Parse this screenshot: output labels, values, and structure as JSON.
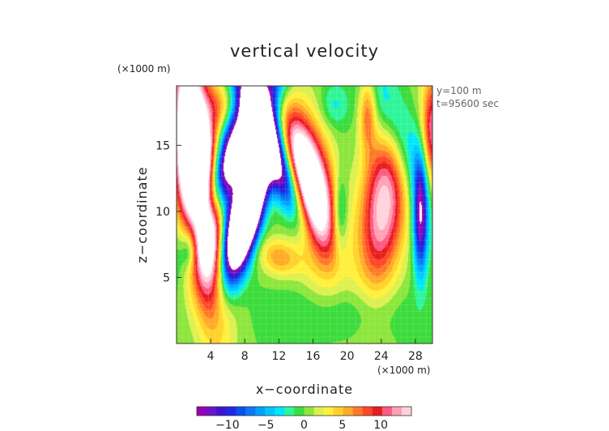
{
  "chart_data": {
    "type": "heatmap",
    "title": "vertical velocity",
    "xlabel": "x−coordinate",
    "ylabel": "z−coordinate",
    "x_unit": "(×1000 m)",
    "y_unit": "(×1000 m)",
    "info_lines": [
      "y=100 m",
      "t=95600 sec"
    ],
    "xlim": [
      0,
      30
    ],
    "ylim": [
      0,
      19.5
    ],
    "x_ticks": [
      4,
      8,
      12,
      16,
      20,
      24,
      28
    ],
    "y_ticks": [
      5,
      10,
      15
    ],
    "colorbar": {
      "ticks": [
        -10,
        -5,
        0,
        5,
        10
      ],
      "tick_labels": [
        "−10",
        "−5",
        "0",
        "5",
        "10"
      ],
      "range": [
        -14,
        14
      ],
      "colors": [
        "#9a00b4",
        "#6a14c8",
        "#3b14d2",
        "#1e28e6",
        "#0a50f0",
        "#0a78f5",
        "#00a0ff",
        "#00c8ff",
        "#00e6ff",
        "#2ef59a",
        "#3cdc3c",
        "#8ce63c",
        "#dcf050",
        "#fff03c",
        "#ffd22a",
        "#ffaa28",
        "#ff7828",
        "#ff4628",
        "#e61e1e",
        "#ff5a82",
        "#ffa0b4",
        "#ffd2dc"
      ]
    },
    "features": [
      {
        "x": 2.8,
        "z": 12.2,
        "w": 30,
        "sx": 1.6,
        "sz": 6.2,
        "tilt": -0.15
      },
      {
        "x": 1.0,
        "z": 15.0,
        "w": 6,
        "sx": 1.0,
        "sz": 4.0,
        "tilt": 0
      },
      {
        "x": 8.6,
        "z": 10.5,
        "w": -36,
        "sx": 1.1,
        "sz": 3.4,
        "tilt": 0.35
      },
      {
        "x": 7.2,
        "z": 15.0,
        "w": -22,
        "sx": 1.6,
        "sz": 4.2,
        "tilt": 0.7
      },
      {
        "x": 10.6,
        "z": 15.5,
        "w": -20,
        "sx": 1.2,
        "sz": 4.2,
        "tilt": -0.6
      },
      {
        "x": 6.2,
        "z": 8.0,
        "w": -12,
        "sx": 1.0,
        "sz": 2.6,
        "tilt": 0.2
      },
      {
        "x": 16.2,
        "z": 11.0,
        "w": 16,
        "sx": 1.8,
        "sz": 4.0,
        "tilt": -0.2
      },
      {
        "x": 14.6,
        "z": 14.0,
        "w": 10,
        "sx": 1.3,
        "sz": 3.0,
        "tilt": -0.4
      },
      {
        "x": 12.0,
        "z": 6.5,
        "w": 6,
        "sx": 1.6,
        "sz": 1.0,
        "tilt": -0.3
      },
      {
        "x": 19.2,
        "z": 9.8,
        "w": -6,
        "sx": 0.6,
        "sz": 2.0,
        "tilt": 0
      },
      {
        "x": 24.3,
        "z": 10.5,
        "w": 14,
        "sx": 1.9,
        "sz": 4.4,
        "tilt": 0.15
      },
      {
        "x": 22.4,
        "z": 17.5,
        "w": 7,
        "sx": 0.7,
        "sz": 2.0,
        "tilt": 0
      },
      {
        "x": 26.5,
        "z": 15.5,
        "w": -7,
        "sx": 1.8,
        "sz": 3.8,
        "tilt": -0.5
      },
      {
        "x": 28.6,
        "z": 9.6,
        "w": -14,
        "sx": 0.6,
        "sz": 3.0,
        "tilt": 0
      },
      {
        "x": 30.0,
        "z": 15.8,
        "w": 12,
        "sx": 0.9,
        "sz": 3.2,
        "tilt": 0
      },
      {
        "x": 1.5,
        "z": 7.0,
        "w": -5,
        "sx": 0.6,
        "sz": 1.0,
        "tilt": 0
      },
      {
        "x": 18.5,
        "z": 18.0,
        "w": -3,
        "sx": 1.2,
        "sz": 1.2,
        "tilt": 0
      },
      {
        "x": 5.0,
        "z": 18.0,
        "w": 4,
        "sx": 1.0,
        "sz": 1.2,
        "tilt": 0
      },
      {
        "x": 20.0,
        "z": 2.5,
        "w": -2,
        "sx": 5.0,
        "sz": 1.4,
        "tilt": 0
      }
    ]
  }
}
